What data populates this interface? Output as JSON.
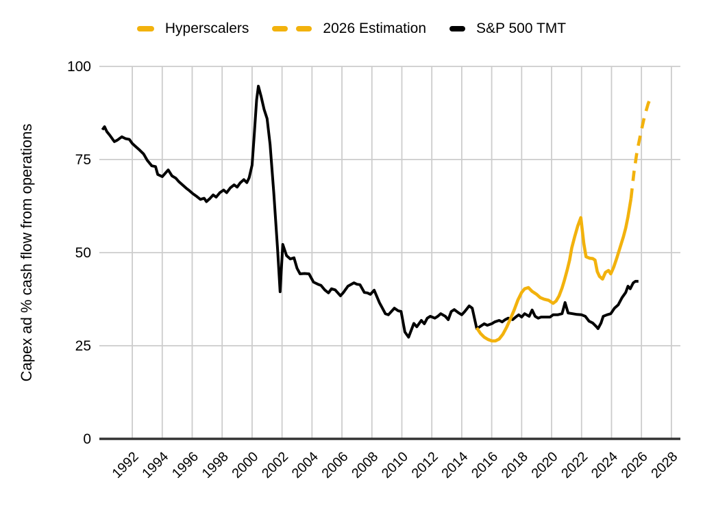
{
  "colors": {
    "accent_yellow": "#F2B20D",
    "line_black": "#000000",
    "gridline": "#CCCCCC",
    "axis": "#333333",
    "text": "#000000"
  },
  "legend": {
    "items": [
      {
        "label": "Hyperscalers",
        "swatch": "solid-yellow"
      },
      {
        "label": "2026 Estimation",
        "swatch": "dashed-yellow"
      },
      {
        "label": "S&P 500 TMT",
        "swatch": "solid-black"
      }
    ]
  },
  "chart_data": {
    "type": "line",
    "title": "",
    "xlabel": "",
    "ylabel": "Capex ad % cash flow from operations",
    "grid": "on",
    "legend_position": "top",
    "xlim": [
      1989.8,
      2028.6
    ],
    "ylim": [
      0,
      100
    ],
    "x_ticks": [
      1992,
      1994,
      1996,
      1998,
      2000,
      2002,
      2004,
      2006,
      2008,
      2010,
      2012,
      2014,
      2016,
      2018,
      2020,
      2022,
      2024,
      2026,
      2028
    ],
    "y_ticks": [
      0,
      25,
      50,
      75,
      100
    ],
    "series": [
      {
        "id": "sp500-tmt",
        "name": "S&P 500 TMT",
        "color": "line_black",
        "dash": false,
        "width": 4,
        "points": [
          [
            1990.0,
            83
          ],
          [
            1990.15,
            83.8
          ],
          [
            1990.3,
            82.5
          ],
          [
            1990.5,
            81.5
          ],
          [
            1990.8,
            79.8
          ],
          [
            1991.0,
            80.2
          ],
          [
            1991.3,
            81.1
          ],
          [
            1991.55,
            80.6
          ],
          [
            1991.8,
            80.4
          ],
          [
            1992.0,
            79.3
          ],
          [
            1992.25,
            78.4
          ],
          [
            1992.5,
            77.5
          ],
          [
            1992.75,
            76.5
          ],
          [
            1993.0,
            74.8
          ],
          [
            1993.3,
            73.3
          ],
          [
            1993.55,
            73.1
          ],
          [
            1993.7,
            71.0
          ],
          [
            1994.0,
            70.4
          ],
          [
            1994.2,
            71.3
          ],
          [
            1994.4,
            72.2
          ],
          [
            1994.65,
            70.6
          ],
          [
            1994.9,
            70.0
          ],
          [
            1995.1,
            69.1
          ],
          [
            1995.35,
            68.2
          ],
          [
            1995.6,
            67.3
          ],
          [
            1995.8,
            66.7
          ],
          [
            1996.05,
            65.8
          ],
          [
            1996.3,
            65.1
          ],
          [
            1996.55,
            64.3
          ],
          [
            1996.8,
            64.6
          ],
          [
            1996.95,
            63.7
          ],
          [
            1997.2,
            64.6
          ],
          [
            1997.4,
            65.5
          ],
          [
            1997.6,
            64.9
          ],
          [
            1997.85,
            66.1
          ],
          [
            1998.1,
            66.8
          ],
          [
            1998.3,
            66.1
          ],
          [
            1998.55,
            67.4
          ],
          [
            1998.8,
            68.2
          ],
          [
            1999.0,
            67.6
          ],
          [
            1999.2,
            68.7
          ],
          [
            1999.45,
            69.6
          ],
          [
            1999.65,
            68.8
          ],
          [
            1999.8,
            70.1
          ],
          [
            2000.0,
            73.5
          ],
          [
            2000.15,
            82.0
          ],
          [
            2000.3,
            91.0
          ],
          [
            2000.42,
            94.7
          ],
          [
            2000.6,
            92.0
          ],
          [
            2000.8,
            88.5
          ],
          [
            2001.0,
            86.0
          ],
          [
            2001.2,
            79.0
          ],
          [
            2001.45,
            66.0
          ],
          [
            2001.7,
            51.0
          ],
          [
            2001.87,
            39.5
          ],
          [
            2002.05,
            52.2
          ],
          [
            2002.3,
            49.2
          ],
          [
            2002.55,
            48.3
          ],
          [
            2002.8,
            48.6
          ],
          [
            2003.0,
            45.8
          ],
          [
            2003.2,
            44.3
          ],
          [
            2003.5,
            44.4
          ],
          [
            2003.8,
            44.3
          ],
          [
            2004.1,
            42.1
          ],
          [
            2004.4,
            41.5
          ],
          [
            2004.6,
            41.2
          ],
          [
            2004.85,
            40.0
          ],
          [
            2005.1,
            39.2
          ],
          [
            2005.3,
            40.3
          ],
          [
            2005.55,
            40.0
          ],
          [
            2005.9,
            38.4
          ],
          [
            2006.1,
            39.3
          ],
          [
            2006.4,
            41.0
          ],
          [
            2006.8,
            41.9
          ],
          [
            2007.0,
            41.5
          ],
          [
            2007.2,
            41.4
          ],
          [
            2007.5,
            39.3
          ],
          [
            2007.7,
            39.2
          ],
          [
            2007.9,
            38.8
          ],
          [
            2008.15,
            39.9
          ],
          [
            2008.5,
            36.6
          ],
          [
            2008.7,
            35.1
          ],
          [
            2008.9,
            33.6
          ],
          [
            2009.1,
            33.3
          ],
          [
            2009.5,
            35.1
          ],
          [
            2009.75,
            34.4
          ],
          [
            2009.95,
            34.2
          ],
          [
            2010.2,
            28.7
          ],
          [
            2010.45,
            27.3
          ],
          [
            2010.8,
            31.0
          ],
          [
            2011.0,
            30.1
          ],
          [
            2011.3,
            31.8
          ],
          [
            2011.5,
            30.9
          ],
          [
            2011.7,
            32.4
          ],
          [
            2011.9,
            32.9
          ],
          [
            2012.2,
            32.4
          ],
          [
            2012.4,
            32.9
          ],
          [
            2012.6,
            33.6
          ],
          [
            2012.9,
            32.9
          ],
          [
            2013.1,
            32.0
          ],
          [
            2013.3,
            34.2
          ],
          [
            2013.5,
            34.7
          ],
          [
            2013.8,
            33.8
          ],
          [
            2014.0,
            33.3
          ],
          [
            2014.2,
            34.2
          ],
          [
            2014.5,
            35.7
          ],
          [
            2014.7,
            35.1
          ],
          [
            2015.0,
            29.6
          ],
          [
            2015.2,
            30.1
          ],
          [
            2015.5,
            30.9
          ],
          [
            2015.7,
            30.5
          ],
          [
            2016.0,
            30.9
          ],
          [
            2016.2,
            31.4
          ],
          [
            2016.5,
            31.8
          ],
          [
            2016.7,
            31.4
          ],
          [
            2016.9,
            32.0
          ],
          [
            2017.1,
            32.4
          ],
          [
            2017.4,
            32.0
          ],
          [
            2017.6,
            32.7
          ],
          [
            2017.8,
            33.3
          ],
          [
            2018.0,
            32.7
          ],
          [
            2018.2,
            33.6
          ],
          [
            2018.5,
            32.9
          ],
          [
            2018.7,
            34.6
          ],
          [
            2018.9,
            32.9
          ],
          [
            2019.1,
            32.4
          ],
          [
            2019.3,
            32.7
          ],
          [
            2019.6,
            32.7
          ],
          [
            2019.9,
            32.7
          ],
          [
            2020.1,
            33.3
          ],
          [
            2020.4,
            33.3
          ],
          [
            2020.7,
            33.6
          ],
          [
            2020.9,
            36.6
          ],
          [
            2021.1,
            33.8
          ],
          [
            2021.4,
            33.6
          ],
          [
            2021.7,
            33.4
          ],
          [
            2022.0,
            33.3
          ],
          [
            2022.25,
            32.9
          ],
          [
            2022.5,
            31.6
          ],
          [
            2022.75,
            31.1
          ],
          [
            2023.0,
            30.1
          ],
          [
            2023.1,
            29.6
          ],
          [
            2023.3,
            31.1
          ],
          [
            2023.45,
            32.9
          ],
          [
            2023.7,
            33.3
          ],
          [
            2023.95,
            33.6
          ],
          [
            2024.2,
            35.1
          ],
          [
            2024.45,
            36.0
          ],
          [
            2024.7,
            37.9
          ],
          [
            2024.95,
            39.3
          ],
          [
            2025.1,
            41.0
          ],
          [
            2025.25,
            40.3
          ],
          [
            2025.45,
            41.9
          ],
          [
            2025.6,
            42.3
          ],
          [
            2025.8,
            42.3
          ]
        ]
      },
      {
        "id": "hyperscalers",
        "name": "Hyperscalers",
        "color": "accent_yellow",
        "dash": false,
        "width": 4.6,
        "points": [
          [
            2015.0,
            29.8
          ],
          [
            2015.25,
            28.3
          ],
          [
            2015.5,
            27.3
          ],
          [
            2015.75,
            26.7
          ],
          [
            2016.0,
            26.3
          ],
          [
            2016.25,
            26.3
          ],
          [
            2016.5,
            26.8
          ],
          [
            2016.75,
            28.1
          ],
          [
            2017.0,
            30.0
          ],
          [
            2017.25,
            32.2
          ],
          [
            2017.5,
            34.6
          ],
          [
            2017.75,
            37.3
          ],
          [
            2018.0,
            39.3
          ],
          [
            2018.2,
            40.3
          ],
          [
            2018.45,
            40.6
          ],
          [
            2018.7,
            39.6
          ],
          [
            2019.0,
            38.8
          ],
          [
            2019.25,
            37.9
          ],
          [
            2019.5,
            37.5
          ],
          [
            2019.8,
            37.2
          ],
          [
            2020.1,
            36.4
          ],
          [
            2020.3,
            37.0
          ],
          [
            2020.5,
            38.4
          ],
          [
            2020.7,
            40.5
          ],
          [
            2020.85,
            42.5
          ],
          [
            2021.05,
            45.5
          ],
          [
            2021.2,
            48.0
          ],
          [
            2021.35,
            51.3
          ],
          [
            2021.55,
            54.4
          ],
          [
            2021.75,
            57.2
          ],
          [
            2021.95,
            59.4
          ],
          [
            2022.15,
            52.5
          ],
          [
            2022.3,
            48.9
          ],
          [
            2022.55,
            48.5
          ],
          [
            2022.75,
            48.4
          ],
          [
            2022.9,
            48.0
          ],
          [
            2023.05,
            44.9
          ],
          [
            2023.2,
            43.6
          ],
          [
            2023.4,
            42.9
          ],
          [
            2023.6,
            44.7
          ],
          [
            2023.8,
            45.2
          ],
          [
            2023.95,
            44.3
          ],
          [
            2024.15,
            46.1
          ],
          [
            2024.35,
            48.5
          ],
          [
            2024.55,
            51.1
          ],
          [
            2024.8,
            54.3
          ],
          [
            2024.95,
            56.6
          ],
          [
            2025.1,
            59.6
          ],
          [
            2025.3,
            64.5
          ]
        ]
      },
      {
        "id": "estimation-2026",
        "name": "2026 Estimation",
        "color": "accent_yellow",
        "dash": true,
        "width": 4.6,
        "points": [
          [
            2025.3,
            64.5
          ],
          [
            2025.5,
            71.5
          ],
          [
            2025.7,
            77.0
          ],
          [
            2025.95,
            82.0
          ],
          [
            2026.2,
            86.5
          ],
          [
            2026.45,
            90.0
          ],
          [
            2026.6,
            91.5
          ],
          [
            2026.75,
            92.3
          ]
        ]
      }
    ]
  }
}
